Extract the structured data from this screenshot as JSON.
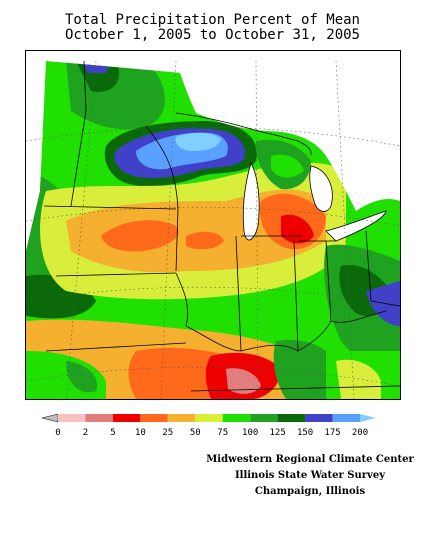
{
  "title": {
    "line1": "Total Precipitation Percent of Mean",
    "line2": "October 1, 2005 to October 31, 2005"
  },
  "legend": {
    "labels": [
      "0",
      "2",
      "5",
      "10",
      "25",
      "50",
      "75",
      "100",
      "125",
      "150",
      "175",
      "200"
    ],
    "colors": [
      "#bfbfbf",
      "#f7c2c2",
      "#e07e7e",
      "#ee0000",
      "#ff6a1a",
      "#f5b030",
      "#d8ee3a",
      "#1fe000",
      "#1fa21f",
      "#0a6a0a",
      "#4040c8",
      "#5aa0ff",
      "#7fd0ff"
    ]
  },
  "credits": {
    "line1": "Midwestern Regional Climate Center",
    "line2": "Illinois State Water Survey",
    "line3": "Champaign, Illinois"
  },
  "map": {
    "region": "Midwest United States",
    "colors": {
      "green": "#1fe000",
      "dark_green": "#1fa21f",
      "darker_green": "#0a6a0a",
      "blue": "#4040c8",
      "light_blue": "#5aa0ff",
      "sky_blue": "#7fd0ff",
      "yellow_green": "#d8ee3a",
      "orange": "#f5b030",
      "orange_red": "#ff6a1a",
      "red": "#ee0000",
      "pink": "#e07e7e"
    }
  }
}
